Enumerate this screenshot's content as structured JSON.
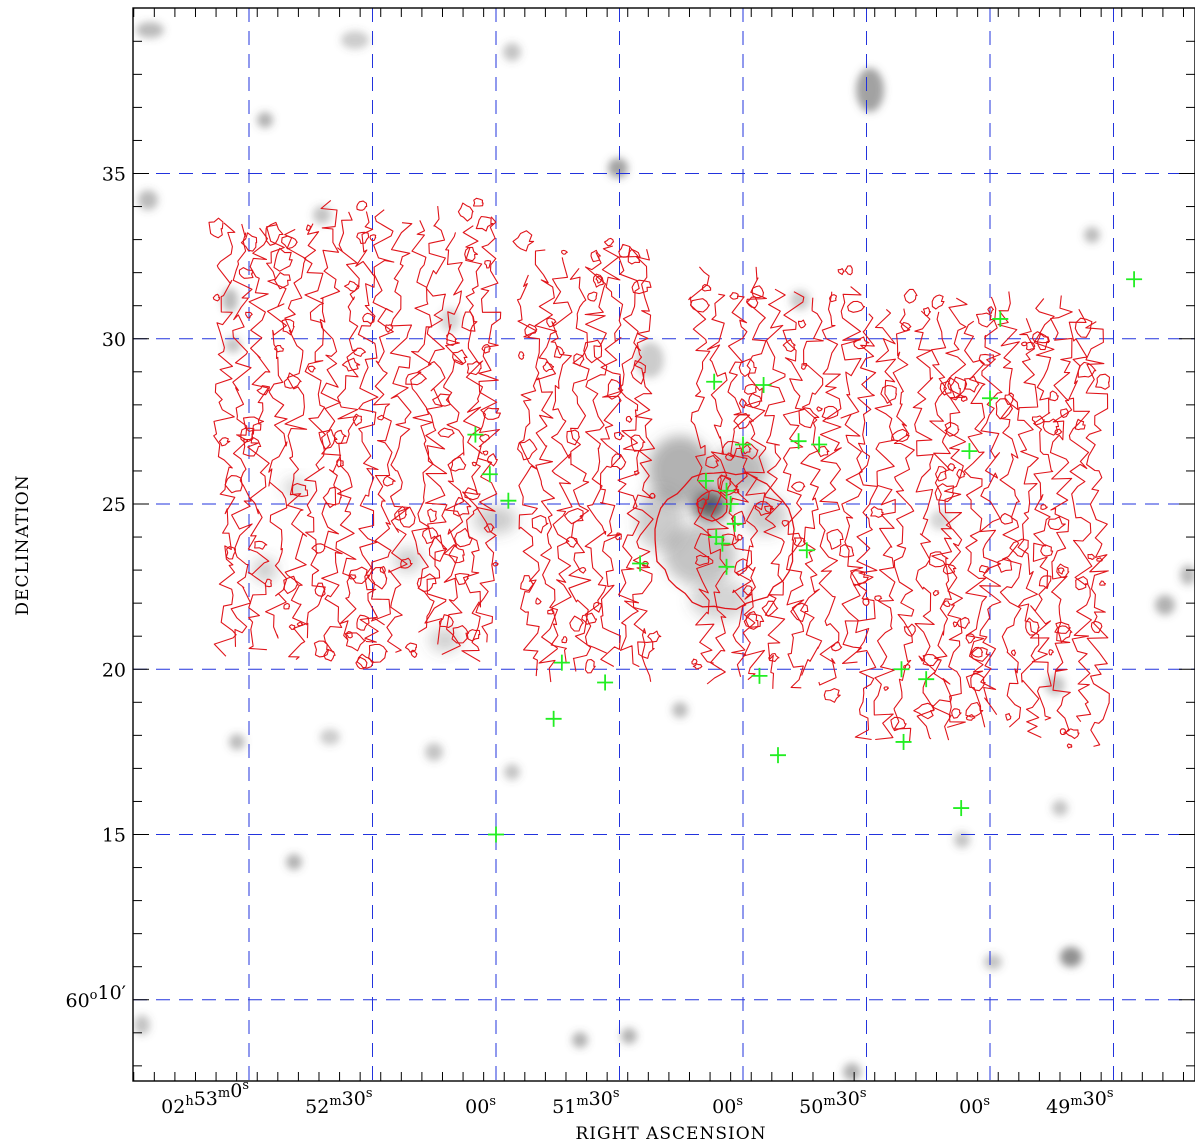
{
  "chart_data": {
    "type": "scatter",
    "title": "",
    "xlabel": "RIGHT ASCENSION",
    "ylabel": "DECLINATION",
    "grid": true,
    "colors": {
      "grid": "#2233dd",
      "contour": "#e0141a",
      "markers": "#22ee22",
      "image": "#555555"
    },
    "x_ticks": [
      {
        "ra_s": 180,
        "parts": [
          [
            "02",
            "h"
          ],
          [
            "53",
            "m"
          ],
          [
            "0",
            "s"
          ]
        ]
      },
      {
        "ra_s": 150,
        "parts": [
          [
            "52",
            "m"
          ],
          [
            "30",
            "s"
          ]
        ]
      },
      {
        "ra_s": 120,
        "parts": [
          [
            "00",
            "s"
          ]
        ]
      },
      {
        "ra_s": 90,
        "parts": [
          [
            "51",
            "m"
          ],
          [
            "30",
            "s"
          ]
        ]
      },
      {
        "ra_s": 60,
        "parts": [
          [
            "00",
            "s"
          ]
        ]
      },
      {
        "ra_s": 30,
        "parts": [
          [
            "50",
            "m"
          ],
          [
            "30",
            "s"
          ]
        ]
      },
      {
        "ra_s": 0,
        "parts": [
          [
            "00",
            "s"
          ]
        ]
      },
      {
        "ra_s": -30,
        "parts": [
          [
            "49",
            "m"
          ],
          [
            "30",
            "s"
          ]
        ]
      }
    ],
    "y_ticks": [
      {
        "dec_min": 35,
        "label": "35"
      },
      {
        "dec_min": 30,
        "label": "30"
      },
      {
        "dec_min": 25,
        "label": "25"
      },
      {
        "dec_min": 20,
        "label": "20"
      },
      {
        "dec_min": 15,
        "label": "15"
      },
      {
        "dec_min": 10,
        "parts": [
          [
            "60",
            "o"
          ],
          [
            "10′",
            ""
          ]
        ]
      }
    ],
    "xlim_ra_s": [
      208,
      -49
    ],
    "ylim_dec_min": [
      7.2,
      39.9
    ],
    "sources": [
      {
        "ra_s": -35.0,
        "dec": 31.8
      },
      {
        "ra_s": -2.5,
        "dec": 30.6
      },
      {
        "ra_s": 0.0,
        "dec": 28.2
      },
      {
        "ra_s": 5.0,
        "dec": 26.6
      },
      {
        "ra_s": 67.0,
        "dec": 28.7
      },
      {
        "ra_s": 55.0,
        "dec": 28.6
      },
      {
        "ra_s": 60.0,
        "dec": 26.8
      },
      {
        "ra_s": 46.5,
        "dec": 26.9
      },
      {
        "ra_s": 41.5,
        "dec": 26.8
      },
      {
        "ra_s": 69.0,
        "dec": 25.7
      },
      {
        "ra_s": 64.0,
        "dec": 25.4
      },
      {
        "ra_s": 66.5,
        "dec": 24.0
      },
      {
        "ra_s": 63.0,
        "dec": 25.0
      },
      {
        "ra_s": 62.0,
        "dec": 24.4
      },
      {
        "ra_s": 65.0,
        "dec": 23.8
      },
      {
        "ra_s": 64.0,
        "dec": 23.1
      },
      {
        "ra_s": 85.0,
        "dec": 23.2
      },
      {
        "ra_s": 44.5,
        "dec": 23.6
      },
      {
        "ra_s": 125.0,
        "dec": 27.1
      },
      {
        "ra_s": 121.5,
        "dec": 25.9
      },
      {
        "ra_s": 117.0,
        "dec": 25.1
      },
      {
        "ra_s": 104.0,
        "dec": 20.2
      },
      {
        "ra_s": 93.5,
        "dec": 19.6
      },
      {
        "ra_s": 106.0,
        "dec": 18.5
      },
      {
        "ra_s": 120.0,
        "dec": 15.0
      },
      {
        "ra_s": 56.0,
        "dec": 19.8
      },
      {
        "ra_s": 51.5,
        "dec": 17.4
      },
      {
        "ra_s": 21.5,
        "dec": 20.0
      },
      {
        "ra_s": 15.5,
        "dec": 19.7
      },
      {
        "ra_s": 21.0,
        "dec": 17.8
      },
      {
        "ra_s": 7.0,
        "dec": 15.8
      }
    ]
  }
}
